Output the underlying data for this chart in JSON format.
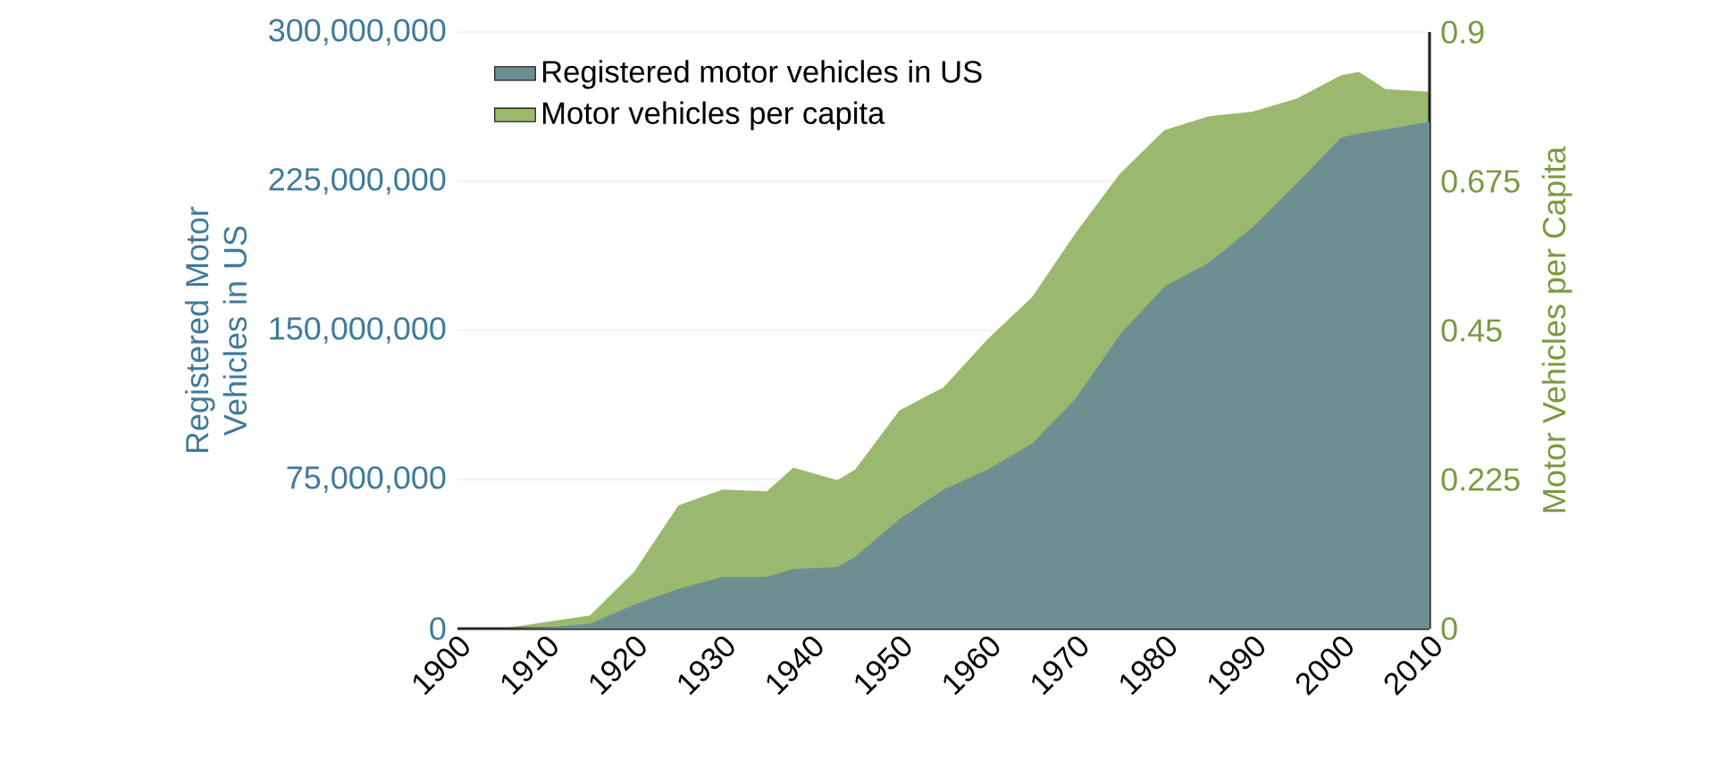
{
  "chart_data": {
    "type": "area",
    "ylabel": "Registered Motor Vehicles in US",
    "y2label": "Motor Vehicles per Capita",
    "x": [
      1900,
      1905,
      1910,
      1915,
      1920,
      1925,
      1930,
      1935,
      1938,
      1943,
      1945,
      1950,
      1955,
      1960,
      1965,
      1970,
      1975,
      1980,
      1985,
      1990,
      1995,
      2000,
      2002,
      2005,
      2010
    ],
    "series": [
      {
        "name": "Registered motor vehicles in US",
        "color": "#6e8f92",
        "values": [
          0,
          0,
          500000,
          2500000,
          12000000,
          20000000,
          26000000,
          26000000,
          30000000,
          31000000,
          36000000,
          55000000,
          70000000,
          80000000,
          93000000,
          116000000,
          148000000,
          172000000,
          184000000,
          202000000,
          224000000,
          247000000,
          249000000,
          251000000,
          255000000
        ]
      },
      {
        "name": "Motor vehicles per capita",
        "color": "#9ab96e",
        "axis": "y2",
        "values": [
          0,
          0,
          0.01,
          0.02,
          0.086,
          0.186,
          0.21,
          0.207,
          0.243,
          0.224,
          0.24,
          0.329,
          0.364,
          0.437,
          0.5,
          0.598,
          0.687,
          0.752,
          0.773,
          0.78,
          0.8,
          0.835,
          0.84,
          0.814,
          0.81
        ]
      }
    ],
    "xlim": [
      1900,
      2010
    ],
    "xticks": [
      1900,
      1910,
      1920,
      1930,
      1940,
      1950,
      1960,
      1970,
      1980,
      1990,
      2000,
      2010
    ],
    "ylim": [
      0,
      300000000
    ],
    "yticks": [
      {
        "value": 0,
        "label": "0"
      },
      {
        "value": 75000000,
        "label": "75,000,000"
      },
      {
        "value": 150000000,
        "label": "150,000,000"
      },
      {
        "value": 225000000,
        "label": "225,000,000"
      },
      {
        "value": 300000000,
        "label": "300,000,000"
      }
    ],
    "y2lim": [
      0,
      0.9
    ],
    "y2ticks": [
      0,
      0.225,
      0.45,
      0.675,
      0.9
    ],
    "grid": "y",
    "legend": "top left"
  }
}
